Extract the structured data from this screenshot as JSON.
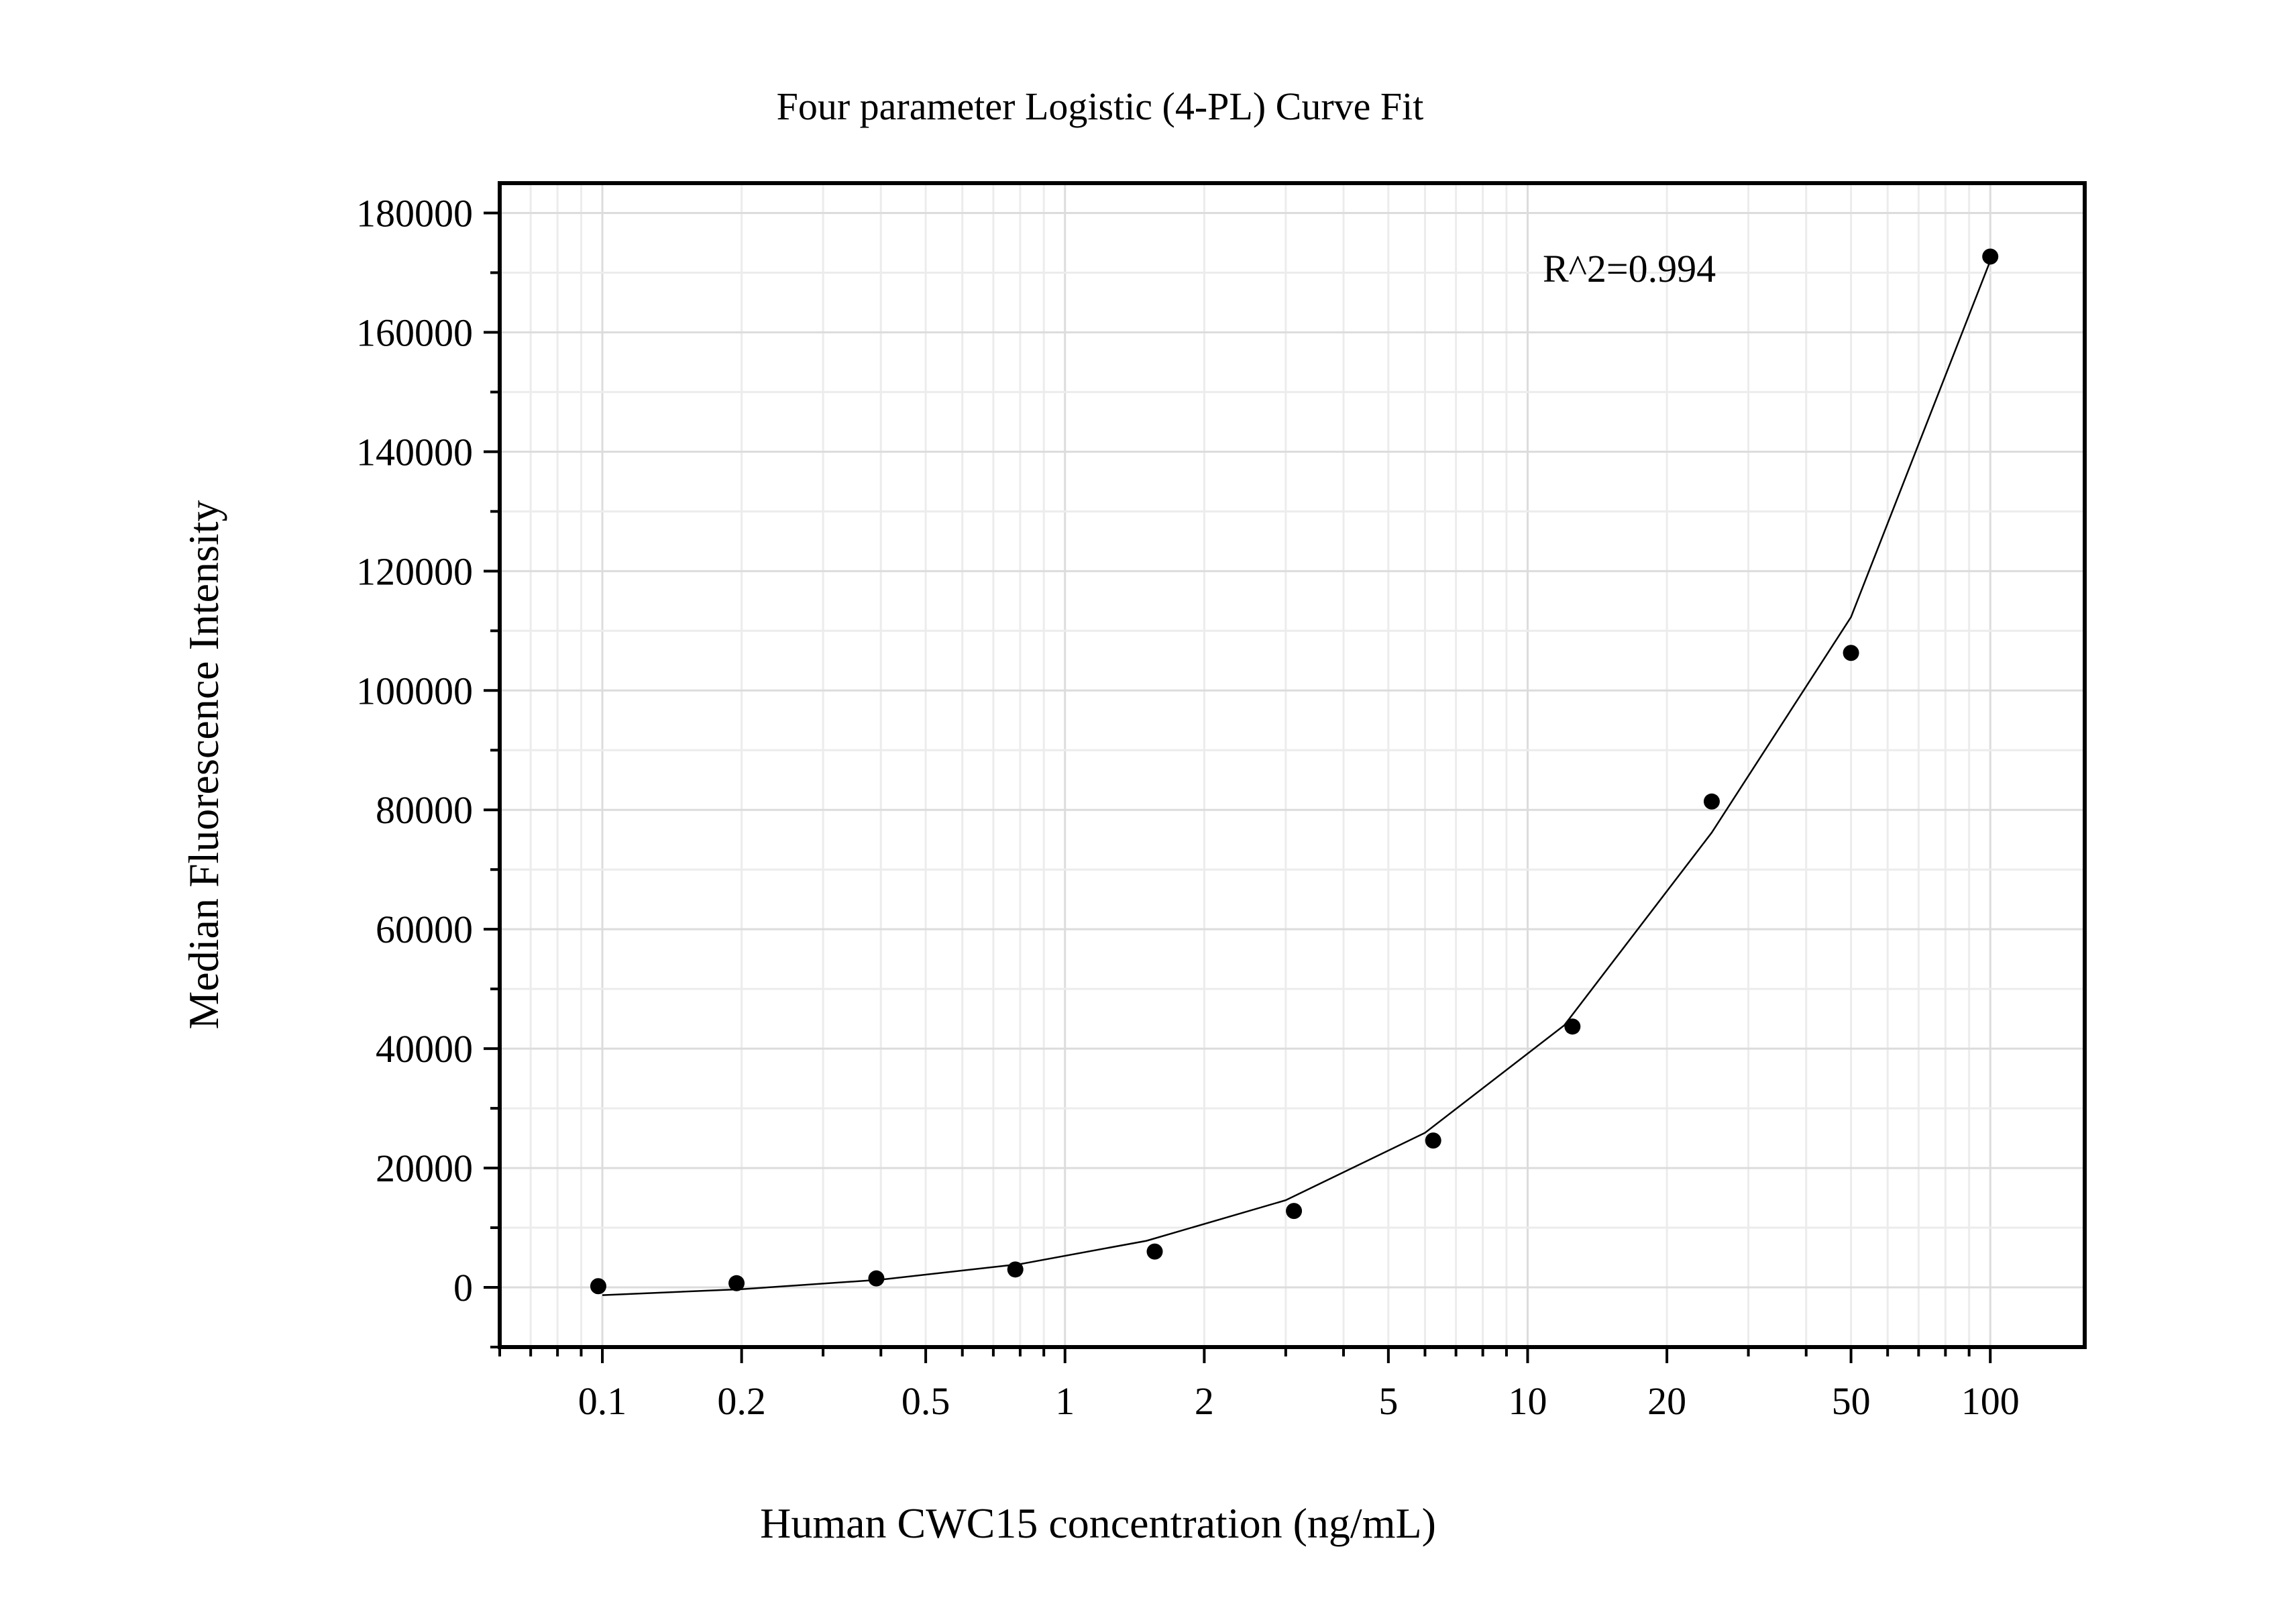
{
  "chart_data": {
    "type": "scatter",
    "title": "Four parameter Logistic (4-PL) Curve Fit",
    "xlabel": "Human CWC15 concentration (ng/mL)",
    "ylabel": "Median Fluorescence Intensity",
    "x_scale": "log",
    "xlim": [
      0.06,
      160
    ],
    "ylim": [
      -10000,
      185000
    ],
    "x_ticks": [
      0.1,
      0.2,
      0.5,
      1,
      2,
      5,
      10,
      20,
      50,
      100
    ],
    "x_tick_labels": [
      "0.1",
      "0.2",
      "0.5",
      "1",
      "2",
      "5",
      "10",
      "20",
      "50",
      "100"
    ],
    "y_ticks": [
      0,
      20000,
      40000,
      60000,
      80000,
      100000,
      120000,
      140000,
      160000,
      180000
    ],
    "y_tick_labels": [
      "0",
      "20000",
      "40000",
      "60000",
      "80000",
      "100000",
      "120000",
      "140000",
      "160000",
      "180000"
    ],
    "grid": true,
    "annotation": "R^2=0.994",
    "series": [
      {
        "type": "scatter",
        "x": [
          0.098,
          0.195,
          0.391,
          0.781,
          1.563,
          3.125,
          6.25,
          12.5,
          25,
          50,
          100
        ],
        "values": [
          200,
          700,
          1500,
          3000,
          6000,
          12800,
          24600,
          43700,
          81400,
          106300,
          172700
        ]
      },
      {
        "type": "line",
        "x": [
          0.1,
          0.2,
          0.4,
          0.8,
          1.5,
          3,
          6,
          12,
          25,
          50,
          100
        ],
        "values": [
          -1300,
          -300,
          1300,
          3900,
          7800,
          14600,
          25900,
          43900,
          76200,
          112300,
          172000
        ]
      }
    ]
  }
}
